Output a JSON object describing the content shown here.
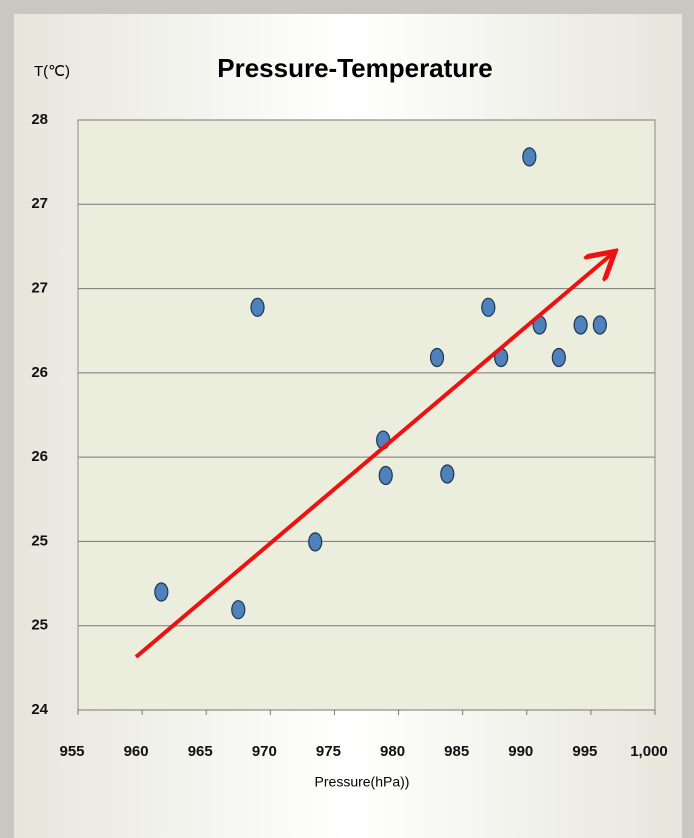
{
  "chart_data": {
    "type": "scatter",
    "title": "Pressure-Temperature",
    "y_label": "T(℃)",
    "x_label": "Pressure(hPa))",
    "series": [
      {
        "color": "#4f81bd",
        "x": [
          961.5,
          967.5,
          969,
          973.5,
          978.8,
          979,
          983,
          983.8,
          987,
          988,
          990.2,
          991,
          992.5,
          994.2,
          995.7
        ],
        "values": [
          24.8,
          24.68,
          26.73,
          25.14,
          25.83,
          25.59,
          26.39,
          25.6,
          26.73,
          26.39,
          27.75,
          26.61,
          26.39,
          26.61,
          26.61
        ]
      }
    ],
    "xlim": [
      955,
      1000
    ],
    "xticks": [
      955,
      960,
      965,
      970,
      975,
      980,
      985,
      990,
      995,
      {
        "value": 1000,
        "label": "1,000"
      }
    ],
    "ylim": [
      24,
      28
    ],
    "yticks": [
      24,
      {
        "value": 24.571,
        "label": "25"
      },
      {
        "value": 25.143,
        "label": "25"
      },
      {
        "value": 25.714,
        "label": "26"
      },
      {
        "value": 26.286,
        "label": "26"
      },
      {
        "value": 26.857,
        "label": "27"
      },
      {
        "value": 27.429,
        "label": "27"
      },
      28
    ],
    "grid": true
  }
}
